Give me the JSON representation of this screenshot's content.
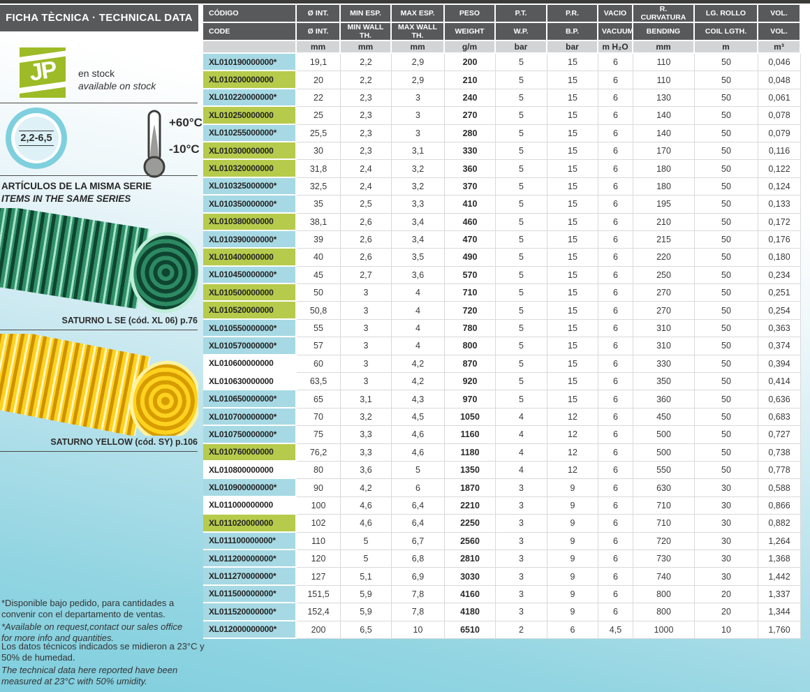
{
  "title_bar": "FICHA TÈCNICA · TECHNICAL DATA",
  "sidebar": {
    "logo_text": "JP",
    "stock_es": "en stock",
    "stock_en": "available on stock",
    "badge_value": "2,2-6,5",
    "temp_high": "+60°C",
    "temp_low": "-10°C",
    "series_es": "ARTÍCULOS DE LA MISMA SERIE",
    "series_en": "ITEMS IN THE SAME SERIES",
    "related_products": [
      {
        "name": "SATURNO L SE",
        "caption": "SATURNO L SE  (cód. XL 06) p.76",
        "hose_color": "green"
      },
      {
        "name": "SATURNO YELLOW",
        "caption": "SATURNO YELLOW  (cód. SY) p.106",
        "hose_color": "yellow"
      }
    ],
    "note_request_es": "*Disponible bajo pedido, para cantidades a\nconvenir con el departamento de ventas.",
    "note_request_en": "*Available on request,contact our sales office\nfor more info and quantities.",
    "note_conditions_es": "Los datos técnicos indicados se midieron a 23°C y\n50% de humedad.",
    "note_conditions_en": "The technical data here reported have been\nmeasured at 23°C with 50% umidity."
  },
  "table": {
    "header_es": [
      "CÓDIGO",
      "Ø INT.",
      "MIN ESP.",
      "MAX ESP.",
      "PESO",
      "P.T.",
      "P.R.",
      "VACIO",
      "R. CURVATURA",
      "LG. ROLLO",
      "VOL."
    ],
    "header_en": [
      "CODE",
      "Ø INT.",
      "MIN WALL TH.",
      "MAX WALL TH.",
      "WEIGHT",
      "W.P.",
      "B.P.",
      "VACUUM",
      "BENDING",
      "COIL LGTH.",
      "VOL."
    ],
    "units": [
      "",
      "mm",
      "mm",
      "mm",
      "g/m",
      "bar",
      "bar",
      "m H₂O",
      "mm",
      "m",
      "m³"
    ],
    "highlight_colors": {
      "blue": "#a6d9e4",
      "green": "#b6cb4b",
      "none": "#ffffff"
    },
    "rows": [
      {
        "code": "XL010190000000*",
        "hl": "blue",
        "values": [
          "19,1",
          "2,2",
          "2,9",
          "200",
          "5",
          "15",
          "6",
          "110",
          "50",
          "0,046"
        ]
      },
      {
        "code": "XL010200000000",
        "hl": "green",
        "values": [
          "20",
          "2,2",
          "2,9",
          "210",
          "5",
          "15",
          "6",
          "110",
          "50",
          "0,048"
        ]
      },
      {
        "code": "XL010220000000*",
        "hl": "blue",
        "values": [
          "22",
          "2,3",
          "3",
          "240",
          "5",
          "15",
          "6",
          "130",
          "50",
          "0,061"
        ]
      },
      {
        "code": "XL010250000000",
        "hl": "green",
        "values": [
          "25",
          "2,3",
          "3",
          "270",
          "5",
          "15",
          "6",
          "140",
          "50",
          "0,078"
        ]
      },
      {
        "code": "XL010255000000*",
        "hl": "blue",
        "values": [
          "25,5",
          "2,3",
          "3",
          "280",
          "5",
          "15",
          "6",
          "140",
          "50",
          "0,079"
        ]
      },
      {
        "code": "XL010300000000",
        "hl": "green",
        "values": [
          "30",
          "2,3",
          "3,1",
          "330",
          "5",
          "15",
          "6",
          "170",
          "50",
          "0,116"
        ]
      },
      {
        "code": "XL010320000000",
        "hl": "green",
        "values": [
          "31,8",
          "2,4",
          "3,2",
          "360",
          "5",
          "15",
          "6",
          "180",
          "50",
          "0,122"
        ]
      },
      {
        "code": "XL010325000000*",
        "hl": "blue",
        "values": [
          "32,5",
          "2,4",
          "3,2",
          "370",
          "5",
          "15",
          "6",
          "180",
          "50",
          "0,124"
        ]
      },
      {
        "code": "XL010350000000*",
        "hl": "blue",
        "values": [
          "35",
          "2,5",
          "3,3",
          "410",
          "5",
          "15",
          "6",
          "195",
          "50",
          "0,133"
        ]
      },
      {
        "code": "XL010380000000",
        "hl": "green",
        "values": [
          "38,1",
          "2,6",
          "3,4",
          "460",
          "5",
          "15",
          "6",
          "210",
          "50",
          "0,172"
        ]
      },
      {
        "code": "XL010390000000*",
        "hl": "blue",
        "values": [
          "39",
          "2,6",
          "3,4",
          "470",
          "5",
          "15",
          "6",
          "215",
          "50",
          "0,176"
        ]
      },
      {
        "code": "XL010400000000",
        "hl": "green",
        "values": [
          "40",
          "2,6",
          "3,5",
          "490",
          "5",
          "15",
          "6",
          "220",
          "50",
          "0,180"
        ]
      },
      {
        "code": "XL010450000000*",
        "hl": "blue",
        "values": [
          "45",
          "2,7",
          "3,6",
          "570",
          "5",
          "15",
          "6",
          "250",
          "50",
          "0,234"
        ]
      },
      {
        "code": "XL010500000000",
        "hl": "green",
        "values": [
          "50",
          "3",
          "4",
          "710",
          "5",
          "15",
          "6",
          "270",
          "50",
          "0,251"
        ]
      },
      {
        "code": "XL010520000000",
        "hl": "green",
        "values": [
          "50,8",
          "3",
          "4",
          "720",
          "5",
          "15",
          "6",
          "270",
          "50",
          "0,254"
        ]
      },
      {
        "code": "XL010550000000*",
        "hl": "blue",
        "values": [
          "55",
          "3",
          "4",
          "780",
          "5",
          "15",
          "6",
          "310",
          "50",
          "0,363"
        ]
      },
      {
        "code": "XL010570000000*",
        "hl": "blue",
        "values": [
          "57",
          "3",
          "4",
          "800",
          "5",
          "15",
          "6",
          "310",
          "50",
          "0,374"
        ]
      },
      {
        "code": "XL010600000000",
        "hl": "none",
        "values": [
          "60",
          "3",
          "4,2",
          "870",
          "5",
          "15",
          "6",
          "330",
          "50",
          "0,394"
        ]
      },
      {
        "code": "XL010630000000",
        "hl": "none",
        "values": [
          "63,5",
          "3",
          "4,2",
          "920",
          "5",
          "15",
          "6",
          "350",
          "50",
          "0,414"
        ]
      },
      {
        "code": "XL010650000000*",
        "hl": "blue",
        "values": [
          "65",
          "3,1",
          "4,3",
          "970",
          "5",
          "15",
          "6",
          "360",
          "50",
          "0,636"
        ]
      },
      {
        "code": "XL010700000000*",
        "hl": "blue",
        "values": [
          "70",
          "3,2",
          "4,5",
          "1050",
          "4",
          "12",
          "6",
          "450",
          "50",
          "0,683"
        ]
      },
      {
        "code": "XL010750000000*",
        "hl": "blue",
        "values": [
          "75",
          "3,3",
          "4,6",
          "1160",
          "4",
          "12",
          "6",
          "500",
          "50",
          "0,727"
        ]
      },
      {
        "code": "XL010760000000",
        "hl": "green",
        "values": [
          "76,2",
          "3,3",
          "4,6",
          "1180",
          "4",
          "12",
          "6",
          "500",
          "50",
          "0,738"
        ]
      },
      {
        "code": "XL010800000000",
        "hl": "none",
        "values": [
          "80",
          "3,6",
          "5",
          "1350",
          "4",
          "12",
          "6",
          "550",
          "50",
          "0,778"
        ]
      },
      {
        "code": "XL010900000000*",
        "hl": "blue",
        "values": [
          "90",
          "4,2",
          "6",
          "1870",
          "3",
          "9",
          "6",
          "630",
          "30",
          "0,588"
        ]
      },
      {
        "code": "XL011000000000",
        "hl": "none",
        "values": [
          "100",
          "4,6",
          "6,4",
          "2210",
          "3",
          "9",
          "6",
          "710",
          "30",
          "0,866"
        ]
      },
      {
        "code": "XL011020000000",
        "hl": "green",
        "values": [
          "102",
          "4,6",
          "6,4",
          "2250",
          "3",
          "9",
          "6",
          "710",
          "30",
          "0,882"
        ]
      },
      {
        "code": "XL011100000000*",
        "hl": "blue",
        "values": [
          "110",
          "5",
          "6,7",
          "2560",
          "3",
          "9",
          "6",
          "720",
          "30",
          "1,264"
        ]
      },
      {
        "code": "XL011200000000*",
        "hl": "blue",
        "values": [
          "120",
          "5",
          "6,8",
          "2810",
          "3",
          "9",
          "6",
          "730",
          "30",
          "1,368"
        ]
      },
      {
        "code": "XL011270000000*",
        "hl": "blue",
        "values": [
          "127",
          "5,1",
          "6,9",
          "3030",
          "3",
          "9",
          "6",
          "740",
          "30",
          "1,442"
        ]
      },
      {
        "code": "XL011500000000*",
        "hl": "blue",
        "values": [
          "151,5",
          "5,9",
          "7,8",
          "4160",
          "3",
          "9",
          "6",
          "800",
          "20",
          "1,337"
        ]
      },
      {
        "code": "XL011520000000*",
        "hl": "blue",
        "values": [
          "152,4",
          "5,9",
          "7,8",
          "4180",
          "3",
          "9",
          "6",
          "800",
          "20",
          "1,344"
        ]
      },
      {
        "code": "XL012000000000*",
        "hl": "blue",
        "values": [
          "200",
          "6,5",
          "10",
          "6510",
          "2",
          "6",
          "4,5",
          "1000",
          "10",
          "1,760"
        ]
      }
    ]
  }
}
